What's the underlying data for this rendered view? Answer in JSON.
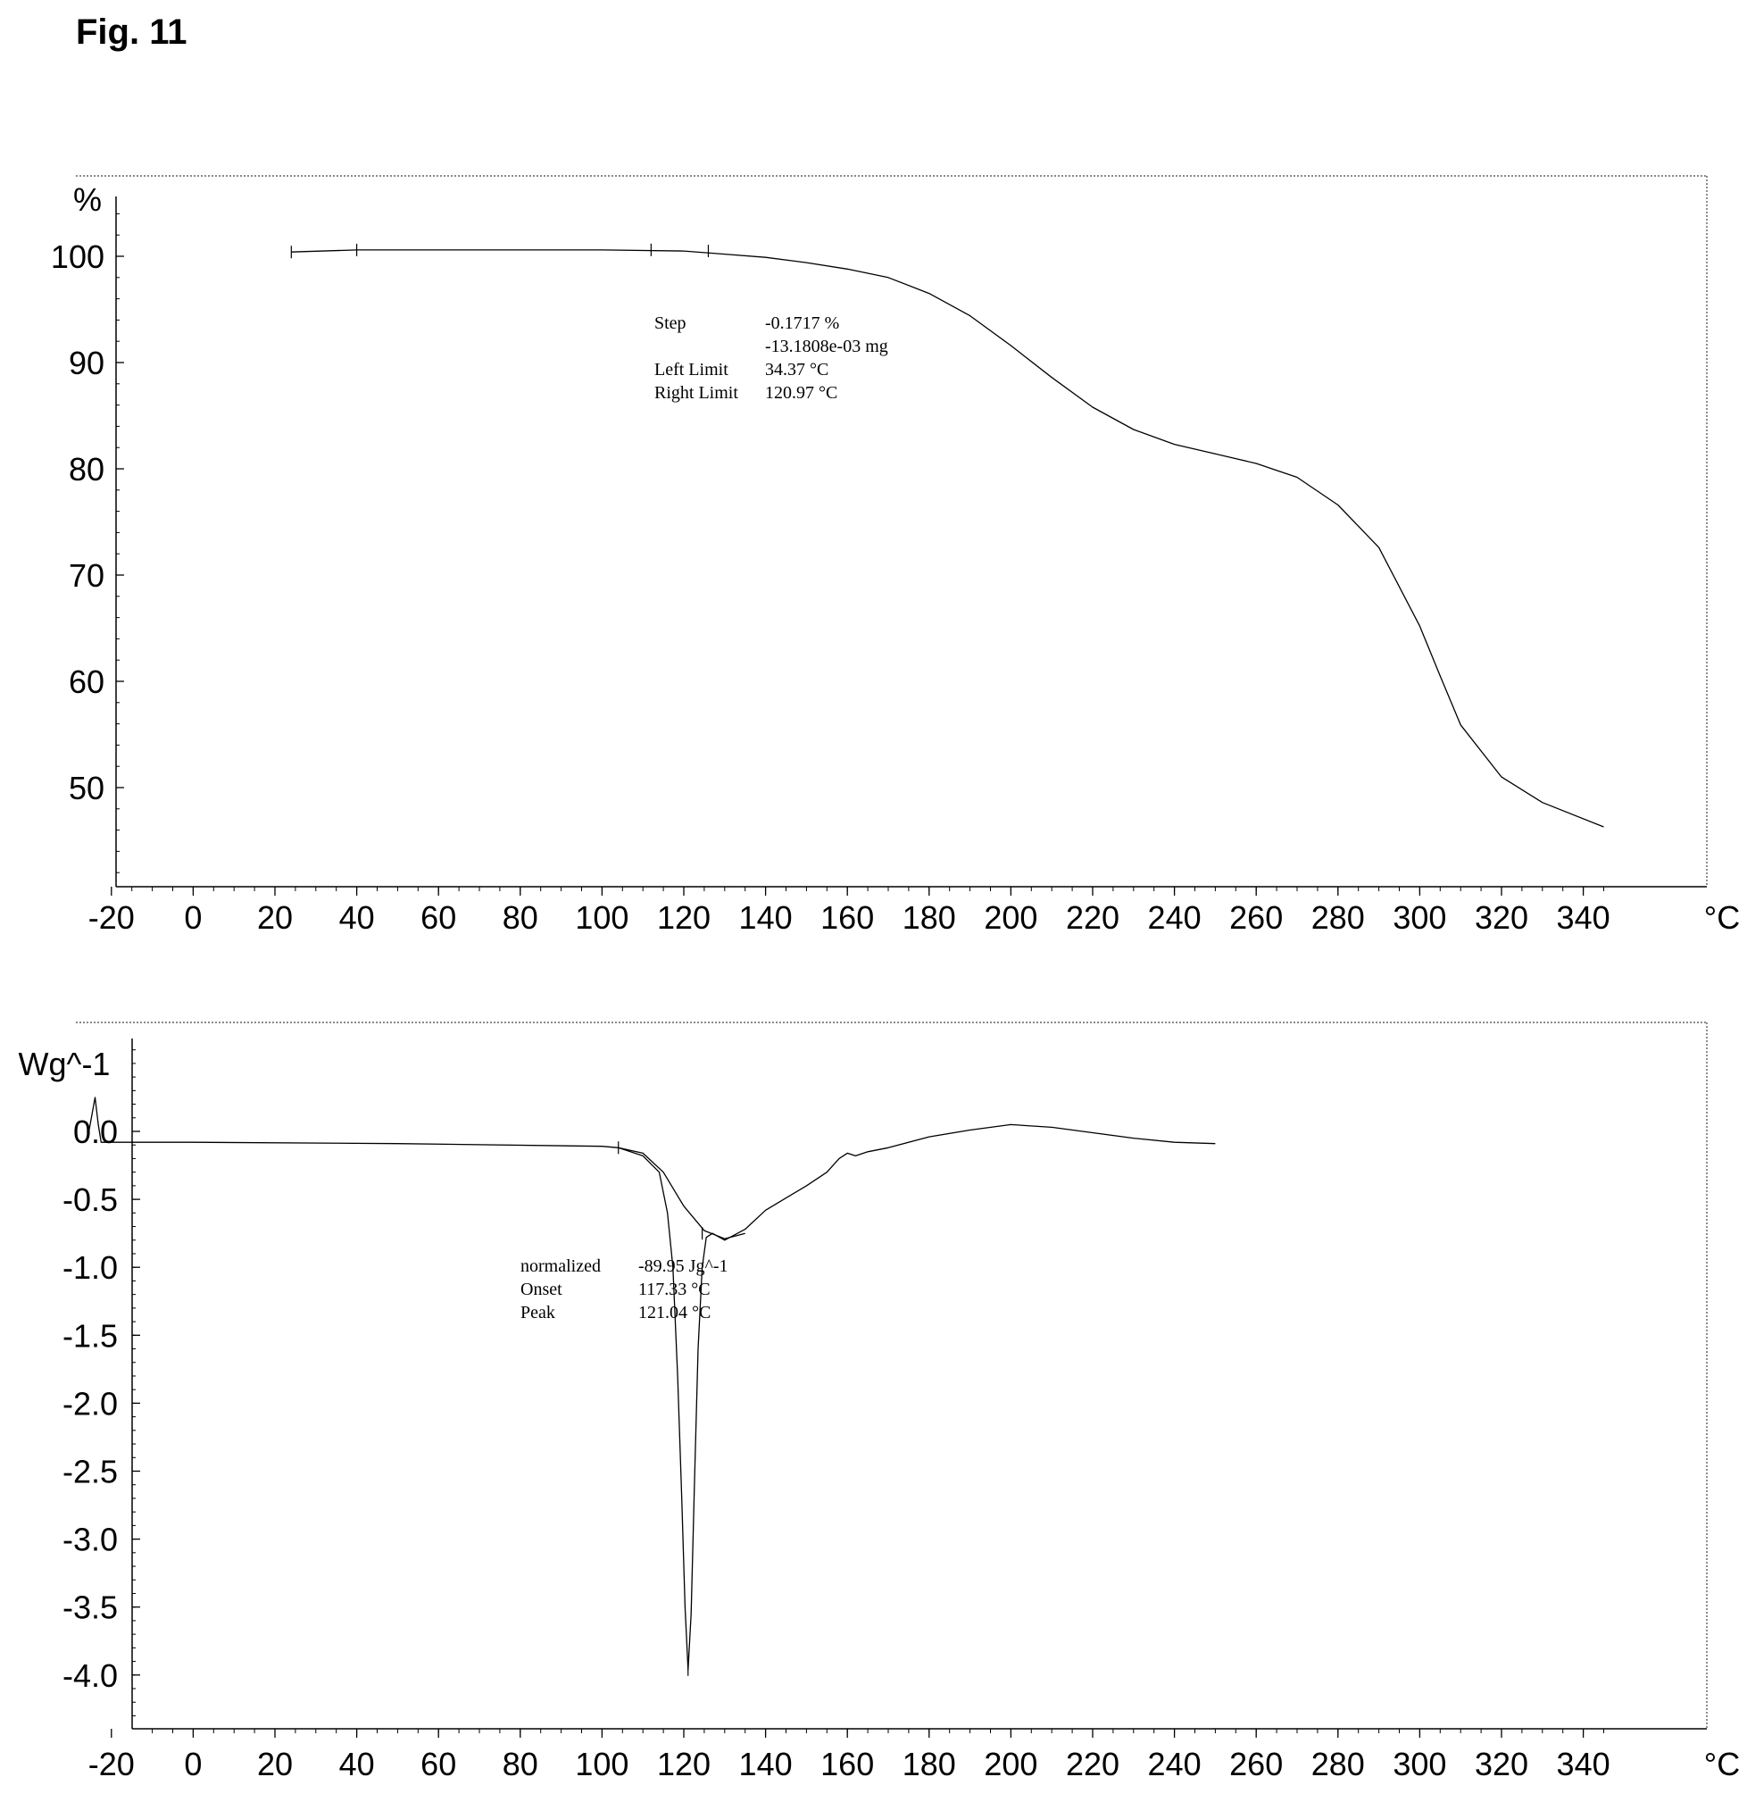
{
  "figure_label": "Fig. 11",
  "chart_data": [
    {
      "type": "line",
      "xunit": "°C",
      "yunit": "%",
      "xlim": [
        -40,
        345
      ],
      "ylim": [
        41,
        106
      ],
      "xticks": [
        -20,
        0,
        20,
        40,
        60,
        80,
        100,
        120,
        140,
        160,
        180,
        200,
        220,
        240,
        260,
        280,
        300,
        320,
        340
      ],
      "yticks": [
        50,
        60,
        70,
        80,
        90,
        100
      ],
      "series": [
        {
          "x": [
            24,
            40,
            60,
            80,
            100,
            120,
            130,
            140,
            150,
            160,
            170,
            180,
            190,
            200,
            210,
            220,
            230,
            240,
            250,
            260,
            270,
            280,
            290,
            300,
            305,
            310,
            320,
            330,
            345
          ],
          "y": [
            100.4,
            100.6,
            100.6,
            100.6,
            100.6,
            100.5,
            100.2,
            99.9,
            99.4,
            98.8,
            98.0,
            96.5,
            94.4,
            91.6,
            88.6,
            85.8,
            83.7,
            82.3,
            81.4,
            80.5,
            79.2,
            76.6,
            72.6,
            65.2,
            60.5,
            55.9,
            51.0,
            48.6,
            46.3
          ]
        }
      ],
      "annotations": [
        {
          "label": "Step",
          "value": "-0.1717 %"
        },
        {
          "label": "",
          "value": "-13.1808e-03 mg"
        },
        {
          "label": "Left Limit",
          "value": "34.37 °C"
        },
        {
          "label": "Right Limit",
          "value": "120.97 °C"
        }
      ]
    },
    {
      "type": "line",
      "xunit": "°C",
      "yunit": "Wg^-1",
      "xlim": [
        -40,
        345
      ],
      "ylim": [
        -4.45,
        0.65
      ],
      "xticks": [
        -20,
        0,
        20,
        40,
        60,
        80,
        100,
        120,
        140,
        160,
        180,
        200,
        220,
        240,
        260,
        280,
        300,
        320,
        340
      ],
      "yticks": [
        0.0,
        -0.5,
        -1.0,
        -1.5,
        -2.0,
        -2.5,
        -3.0,
        -3.5,
        -4.0
      ],
      "yticklabels": [
        "0.0",
        "-0.5",
        "-1.0",
        "-1.5",
        "-2.0",
        "-2.5",
        "-3.0",
        "-3.5",
        "-4.0"
      ],
      "series": [
        {
          "x": [
            -26,
            -25.5,
            -24,
            -23.2,
            -22.5,
            -21,
            0,
            50,
            100,
            104,
            110,
            114,
            116,
            117.33,
            118.5,
            119.5,
            120.3,
            121.04,
            121.8,
            122.6,
            123.5,
            124.5,
            125.5,
            127,
            130,
            135,
            140,
            150,
            155,
            158,
            160,
            162,
            165,
            170,
            180,
            190,
            200,
            210,
            220,
            230,
            240,
            250
          ],
          "y": [
            0.0,
            0.0,
            0.25,
            0.05,
            -0.08,
            -0.08,
            -0.08,
            -0.09,
            -0.11,
            -0.12,
            -0.18,
            -0.3,
            -0.6,
            -1.0,
            -1.8,
            -2.7,
            -3.5,
            -3.96,
            -3.55,
            -2.6,
            -1.6,
            -1.0,
            -0.78,
            -0.75,
            -0.8,
            -0.72,
            -0.58,
            -0.4,
            -0.3,
            -0.2,
            -0.16,
            -0.18,
            -0.15,
            -0.12,
            -0.04,
            0.01,
            0.05,
            0.03,
            -0.01,
            -0.05,
            -0.08,
            -0.09
          ]
        },
        {
          "x": [
            104,
            110,
            115,
            120,
            125,
            130,
            135
          ],
          "y": [
            -0.12,
            -0.16,
            -0.3,
            -0.55,
            -0.73,
            -0.79,
            -0.75
          ]
        }
      ],
      "annotations": [
        {
          "label": "normalized",
          "value": "-89.95 Jg^-1"
        },
        {
          "label": "Onset",
          "value": "117.33 °C"
        },
        {
          "label": "Peak",
          "value": "121.04 °C"
        }
      ]
    }
  ]
}
